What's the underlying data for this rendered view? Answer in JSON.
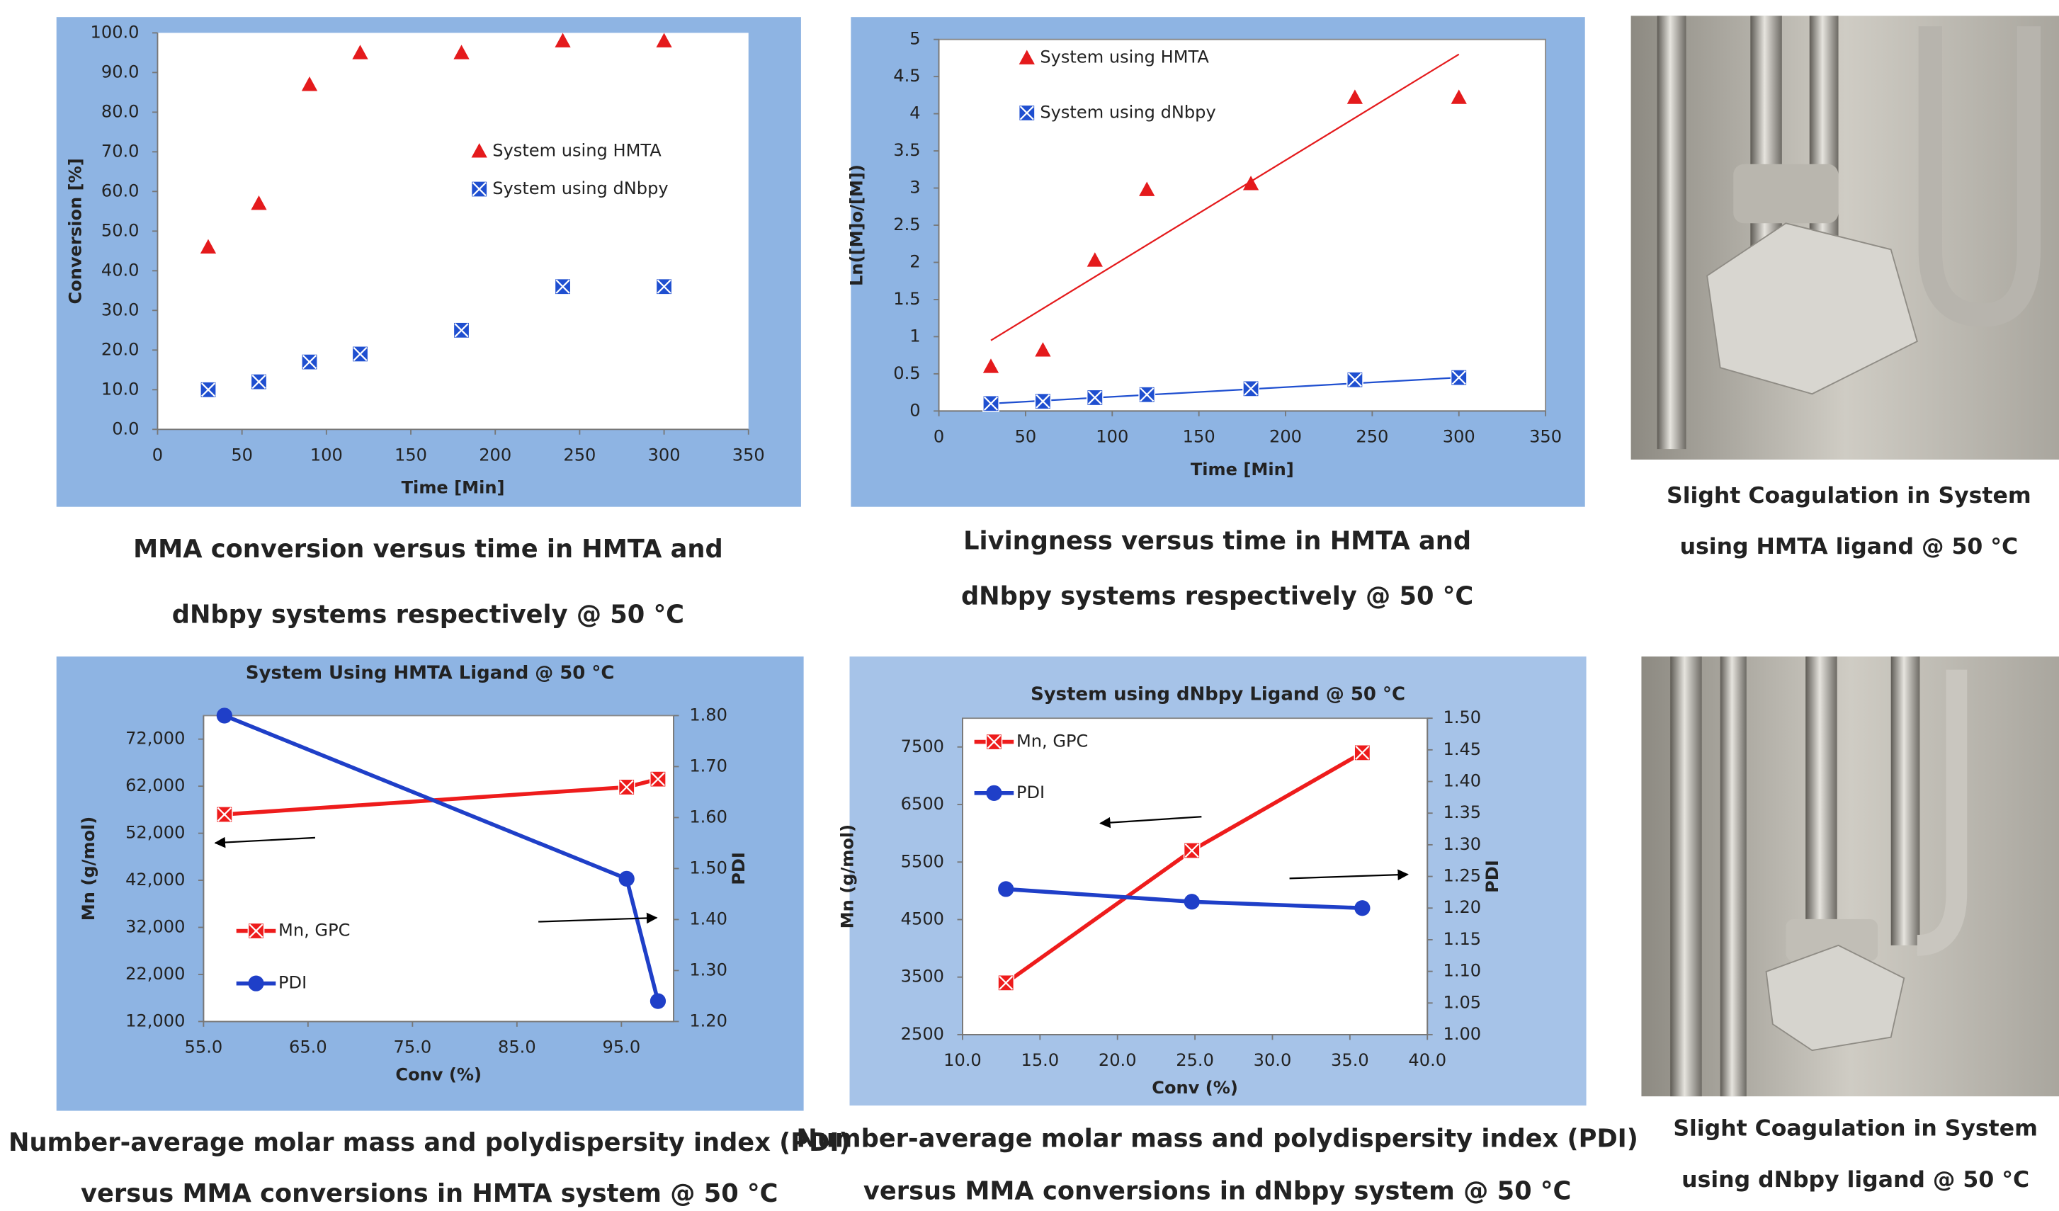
{
  "chart_data": [
    {
      "type": "scatter",
      "caption": [
        "MMA conversion versus time in HMTA and",
        "dNbpy systems respectively @ 50 °C"
      ],
      "x_label": "Time [Min]",
      "y_label": "Conversion [%]",
      "xlim": [
        0,
        350
      ],
      "xticks": [
        0,
        50,
        100,
        150,
        200,
        250,
        300,
        350
      ],
      "ylim": [
        0,
        100
      ],
      "yticks": [
        {
          "value": 0,
          "label": "0.0"
        },
        {
          "value": 10,
          "label": "10.0"
        },
        {
          "value": 20,
          "label": "20.0"
        },
        {
          "value": 30,
          "label": "30.0"
        },
        {
          "value": 40,
          "label": "40.0"
        },
        {
          "value": 50,
          "label": "50.0"
        },
        {
          "value": 60,
          "label": "60.0"
        },
        {
          "value": 70,
          "label": "70.0"
        },
        {
          "value": 80,
          "label": "80.0"
        },
        {
          "value": 90,
          "label": "90.0"
        },
        {
          "value": 100,
          "label": "100.0"
        }
      ],
      "series": [
        {
          "name": "System using HMTA",
          "color": "#e41a1c",
          "marker": "triangle",
          "x": [
            30,
            60,
            90,
            120,
            180,
            240,
            300
          ],
          "values": [
            46,
            57,
            87,
            95,
            95,
            98,
            98
          ]
        },
        {
          "name": "System using dNbpy",
          "color": "#1f4fd0",
          "marker": "xsquare",
          "x": [
            30,
            60,
            90,
            120,
            180,
            240,
            300
          ],
          "values": [
            10,
            12,
            17,
            19,
            25,
            36,
            36
          ]
        }
      ]
    },
    {
      "type": "scatter",
      "caption": [
        "Livingness versus time in HMTA and",
        "dNbpy systems respectively @ 50 °C"
      ],
      "x_label": "Time [Min]",
      "y_label": "Ln([M]o/[M])",
      "xlim": [
        0,
        350
      ],
      "xticks": [
        0,
        50,
        100,
        150,
        200,
        250,
        300,
        350
      ],
      "ylim": [
        0,
        5
      ],
      "yticks": [
        0,
        0.5,
        1,
        1.5,
        2,
        2.5,
        3,
        3.5,
        4,
        4.5,
        5
      ],
      "series": [
        {
          "name": "System using HMTA",
          "color": "#e41a1c",
          "marker": "triangle",
          "x": [
            30,
            60,
            90,
            120,
            180,
            240,
            300
          ],
          "values": [
            0.6,
            0.82,
            2.03,
            2.98,
            3.06,
            4.22,
            4.22
          ],
          "trend_x": [
            30,
            300
          ],
          "trend_values": [
            0.95,
            4.8
          ]
        },
        {
          "name": "System using dNbpy",
          "color": "#1f4fd0",
          "marker": "xsquare",
          "x": [
            30,
            60,
            90,
            120,
            180,
            240,
            300
          ],
          "values": [
            0.1,
            0.13,
            0.18,
            0.22,
            0.3,
            0.42,
            0.45
          ],
          "trend_x": [
            30,
            300
          ],
          "trend_values": [
            0.1,
            0.45
          ]
        }
      ]
    },
    {
      "type": "line",
      "title": "System Using HMTA Ligand @ 50 °C",
      "caption": [
        "Number-average molar mass and polydispersity index (PDI)",
        "versus MMA conversions in HMTA system @ 50 °C"
      ],
      "x_label": "Conv (%)",
      "y_label": "Mn (g/mol)",
      "y2_label": "PDI",
      "xlim": [
        55,
        100
      ],
      "xticks": [
        {
          "value": 55,
          "label": "55.0"
        },
        {
          "value": 65,
          "label": "65.0"
        },
        {
          "value": 75,
          "label": "75.0"
        },
        {
          "value": 85,
          "label": "85.0"
        },
        {
          "value": 95,
          "label": "95.0"
        }
      ],
      "ylim": [
        12000,
        77000
      ],
      "yticks": [
        {
          "value": 12000,
          "label": "12,000"
        },
        {
          "value": 22000,
          "label": "22,000"
        },
        {
          "value": 32000,
          "label": "32,000"
        },
        {
          "value": 42000,
          "label": "42,000"
        },
        {
          "value": 52000,
          "label": "52,000"
        },
        {
          "value": 62000,
          "label": "62,000"
        },
        {
          "value": 72000,
          "label": "72,000"
        }
      ],
      "y2lim": [
        1.2,
        1.8
      ],
      "y2ticks": [
        {
          "value": 1.2,
          "label": "1.20"
        },
        {
          "value": 1.3,
          "label": "1.30"
        },
        {
          "value": 1.4,
          "label": "1.40"
        },
        {
          "value": 1.5,
          "label": "1.50"
        },
        {
          "value": 1.6,
          "label": "1.60"
        },
        {
          "value": 1.7,
          "label": "1.70"
        },
        {
          "value": 1.8,
          "label": "1.80"
        }
      ],
      "series": [
        {
          "name": "Mn, GPC",
          "color": "#ee1c1c",
          "marker": "xsquare",
          "x": [
            57,
            95.5,
            98.5
          ],
          "values": [
            56000,
            61800,
            63500
          ]
        },
        {
          "name": "PDI",
          "color": "#1f3fc8",
          "marker": "circle",
          "axis": "y2",
          "x": [
            57,
            95.5,
            98.5
          ],
          "values": [
            1.8,
            1.48,
            1.24
          ]
        }
      ]
    },
    {
      "type": "line",
      "title": "System using dNbpy Ligand @ 50 °C",
      "caption": [
        "Number-average molar mass and polydispersity index (PDI)",
        "versus MMA conversions in dNbpy system @ 50 °C"
      ],
      "x_label": "Conv (%)",
      "y_label": "Mn (g/mol)",
      "y2_label": "PDI",
      "xlim": [
        10,
        40
      ],
      "xticks": [
        {
          "value": 10,
          "label": "10.0"
        },
        {
          "value": 15,
          "label": "15.0"
        },
        {
          "value": 20,
          "label": "20.0"
        },
        {
          "value": 25,
          "label": "25.0"
        },
        {
          "value": 30,
          "label": "30.0"
        },
        {
          "value": 35,
          "label": "35.0"
        },
        {
          "value": 40,
          "label": "40.0"
        }
      ],
      "ylim": [
        2500,
        8000
      ],
      "yticks": [
        2500,
        3500,
        4500,
        5500,
        6500,
        7500
      ],
      "y2lim": [
        1,
        1.5
      ],
      "y2ticks": [
        {
          "value": 1,
          "label": "1.00"
        },
        {
          "value": 1.05,
          "label": "1.05"
        },
        {
          "value": 1.1,
          "label": "1.10"
        },
        {
          "value": 1.15,
          "label": "1.15"
        },
        {
          "value": 1.2,
          "label": "1.20"
        },
        {
          "value": 1.25,
          "label": "1.25"
        },
        {
          "value": 1.3,
          "label": "1.30"
        },
        {
          "value": 1.35,
          "label": "1.35"
        },
        {
          "value": 1.4,
          "label": "1.40"
        },
        {
          "value": 1.45,
          "label": "1.45"
        },
        {
          "value": 1.5,
          "label": "1.50"
        }
      ],
      "series": [
        {
          "name": "Mn, GPC",
          "color": "#ee1c1c",
          "marker": "xsquare",
          "x": [
            12.8,
            24.8,
            35.8
          ],
          "values": [
            3400,
            5700,
            7400
          ]
        },
        {
          "name": "PDI",
          "color": "#1f3fc8",
          "marker": "circle",
          "axis": "y2",
          "x": [
            12.8,
            24.8,
            35.8
          ],
          "values": [
            1.23,
            1.21,
            1.2
          ]
        }
      ]
    }
  ],
  "photos": [
    {
      "caption": [
        "Slight Coagulation in System",
        "using HMTA ligand @ 50 °C"
      ]
    },
    {
      "caption": [
        "Slight Coagulation in System",
        "using dNbpy ligand @ 50 °C"
      ]
    }
  ]
}
